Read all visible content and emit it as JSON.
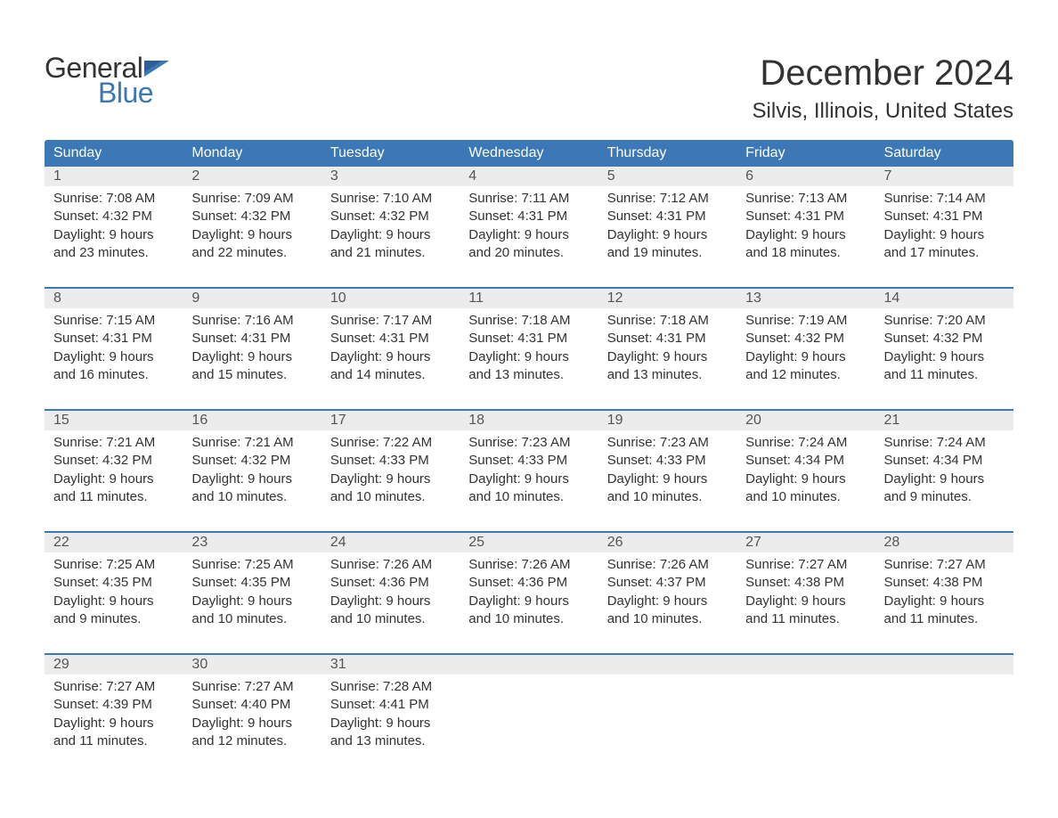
{
  "logo": {
    "text_general": "General",
    "text_blue": "Blue",
    "flag_color": "#3b78b5"
  },
  "title": {
    "month": "December 2024",
    "location": "Silvis, Illinois, United States"
  },
  "colors": {
    "header_bg": "#3b78b5",
    "date_strip_bg": "#ececec",
    "text_dark": "#333333",
    "text_muted": "#555555",
    "logo_blue": "#3b78b5"
  },
  "day_headers": [
    "Sunday",
    "Monday",
    "Tuesday",
    "Wednesday",
    "Thursday",
    "Friday",
    "Saturday"
  ],
  "weeks": [
    {
      "dates": [
        "1",
        "2",
        "3",
        "4",
        "5",
        "6",
        "7"
      ],
      "cells": [
        {
          "sunrise": "Sunrise: 7:08 AM",
          "sunset": "Sunset: 4:32 PM",
          "daylight1": "Daylight: 9 hours",
          "daylight2": "and 23 minutes."
        },
        {
          "sunrise": "Sunrise: 7:09 AM",
          "sunset": "Sunset: 4:32 PM",
          "daylight1": "Daylight: 9 hours",
          "daylight2": "and 22 minutes."
        },
        {
          "sunrise": "Sunrise: 7:10 AM",
          "sunset": "Sunset: 4:32 PM",
          "daylight1": "Daylight: 9 hours",
          "daylight2": "and 21 minutes."
        },
        {
          "sunrise": "Sunrise: 7:11 AM",
          "sunset": "Sunset: 4:31 PM",
          "daylight1": "Daylight: 9 hours",
          "daylight2": "and 20 minutes."
        },
        {
          "sunrise": "Sunrise: 7:12 AM",
          "sunset": "Sunset: 4:31 PM",
          "daylight1": "Daylight: 9 hours",
          "daylight2": "and 19 minutes."
        },
        {
          "sunrise": "Sunrise: 7:13 AM",
          "sunset": "Sunset: 4:31 PM",
          "daylight1": "Daylight: 9 hours",
          "daylight2": "and 18 minutes."
        },
        {
          "sunrise": "Sunrise: 7:14 AM",
          "sunset": "Sunset: 4:31 PM",
          "daylight1": "Daylight: 9 hours",
          "daylight2": "and 17 minutes."
        }
      ]
    },
    {
      "dates": [
        "8",
        "9",
        "10",
        "11",
        "12",
        "13",
        "14"
      ],
      "cells": [
        {
          "sunrise": "Sunrise: 7:15 AM",
          "sunset": "Sunset: 4:31 PM",
          "daylight1": "Daylight: 9 hours",
          "daylight2": "and 16 minutes."
        },
        {
          "sunrise": "Sunrise: 7:16 AM",
          "sunset": "Sunset: 4:31 PM",
          "daylight1": "Daylight: 9 hours",
          "daylight2": "and 15 minutes."
        },
        {
          "sunrise": "Sunrise: 7:17 AM",
          "sunset": "Sunset: 4:31 PM",
          "daylight1": "Daylight: 9 hours",
          "daylight2": "and 14 minutes."
        },
        {
          "sunrise": "Sunrise: 7:18 AM",
          "sunset": "Sunset: 4:31 PM",
          "daylight1": "Daylight: 9 hours",
          "daylight2": "and 13 minutes."
        },
        {
          "sunrise": "Sunrise: 7:18 AM",
          "sunset": "Sunset: 4:31 PM",
          "daylight1": "Daylight: 9 hours",
          "daylight2": "and 13 minutes."
        },
        {
          "sunrise": "Sunrise: 7:19 AM",
          "sunset": "Sunset: 4:32 PM",
          "daylight1": "Daylight: 9 hours",
          "daylight2": "and 12 minutes."
        },
        {
          "sunrise": "Sunrise: 7:20 AM",
          "sunset": "Sunset: 4:32 PM",
          "daylight1": "Daylight: 9 hours",
          "daylight2": "and 11 minutes."
        }
      ]
    },
    {
      "dates": [
        "15",
        "16",
        "17",
        "18",
        "19",
        "20",
        "21"
      ],
      "cells": [
        {
          "sunrise": "Sunrise: 7:21 AM",
          "sunset": "Sunset: 4:32 PM",
          "daylight1": "Daylight: 9 hours",
          "daylight2": "and 11 minutes."
        },
        {
          "sunrise": "Sunrise: 7:21 AM",
          "sunset": "Sunset: 4:32 PM",
          "daylight1": "Daylight: 9 hours",
          "daylight2": "and 10 minutes."
        },
        {
          "sunrise": "Sunrise: 7:22 AM",
          "sunset": "Sunset: 4:33 PM",
          "daylight1": "Daylight: 9 hours",
          "daylight2": "and 10 minutes."
        },
        {
          "sunrise": "Sunrise: 7:23 AM",
          "sunset": "Sunset: 4:33 PM",
          "daylight1": "Daylight: 9 hours",
          "daylight2": "and 10 minutes."
        },
        {
          "sunrise": "Sunrise: 7:23 AM",
          "sunset": "Sunset: 4:33 PM",
          "daylight1": "Daylight: 9 hours",
          "daylight2": "and 10 minutes."
        },
        {
          "sunrise": "Sunrise: 7:24 AM",
          "sunset": "Sunset: 4:34 PM",
          "daylight1": "Daylight: 9 hours",
          "daylight2": "and 10 minutes."
        },
        {
          "sunrise": "Sunrise: 7:24 AM",
          "sunset": "Sunset: 4:34 PM",
          "daylight1": "Daylight: 9 hours",
          "daylight2": "and 9 minutes."
        }
      ]
    },
    {
      "dates": [
        "22",
        "23",
        "24",
        "25",
        "26",
        "27",
        "28"
      ],
      "cells": [
        {
          "sunrise": "Sunrise: 7:25 AM",
          "sunset": "Sunset: 4:35 PM",
          "daylight1": "Daylight: 9 hours",
          "daylight2": "and 9 minutes."
        },
        {
          "sunrise": "Sunrise: 7:25 AM",
          "sunset": "Sunset: 4:35 PM",
          "daylight1": "Daylight: 9 hours",
          "daylight2": "and 10 minutes."
        },
        {
          "sunrise": "Sunrise: 7:26 AM",
          "sunset": "Sunset: 4:36 PM",
          "daylight1": "Daylight: 9 hours",
          "daylight2": "and 10 minutes."
        },
        {
          "sunrise": "Sunrise: 7:26 AM",
          "sunset": "Sunset: 4:36 PM",
          "daylight1": "Daylight: 9 hours",
          "daylight2": "and 10 minutes."
        },
        {
          "sunrise": "Sunrise: 7:26 AM",
          "sunset": "Sunset: 4:37 PM",
          "daylight1": "Daylight: 9 hours",
          "daylight2": "and 10 minutes."
        },
        {
          "sunrise": "Sunrise: 7:27 AM",
          "sunset": "Sunset: 4:38 PM",
          "daylight1": "Daylight: 9 hours",
          "daylight2": "and 11 minutes."
        },
        {
          "sunrise": "Sunrise: 7:27 AM",
          "sunset": "Sunset: 4:38 PM",
          "daylight1": "Daylight: 9 hours",
          "daylight2": "and 11 minutes."
        }
      ]
    },
    {
      "dates": [
        "29",
        "30",
        "31",
        "",
        "",
        "",
        ""
      ],
      "cells": [
        {
          "sunrise": "Sunrise: 7:27 AM",
          "sunset": "Sunset: 4:39 PM",
          "daylight1": "Daylight: 9 hours",
          "daylight2": "and 11 minutes."
        },
        {
          "sunrise": "Sunrise: 7:27 AM",
          "sunset": "Sunset: 4:40 PM",
          "daylight1": "Daylight: 9 hours",
          "daylight2": "and 12 minutes."
        },
        {
          "sunrise": "Sunrise: 7:28 AM",
          "sunset": "Sunset: 4:41 PM",
          "daylight1": "Daylight: 9 hours",
          "daylight2": "and 13 minutes."
        },
        {
          "sunrise": "",
          "sunset": "",
          "daylight1": "",
          "daylight2": ""
        },
        {
          "sunrise": "",
          "sunset": "",
          "daylight1": "",
          "daylight2": ""
        },
        {
          "sunrise": "",
          "sunset": "",
          "daylight1": "",
          "daylight2": ""
        },
        {
          "sunrise": "",
          "sunset": "",
          "daylight1": "",
          "daylight2": ""
        }
      ]
    }
  ]
}
